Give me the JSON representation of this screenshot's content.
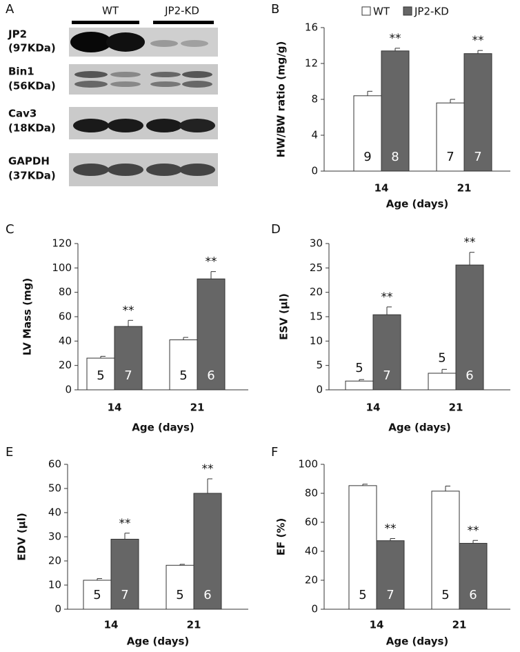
{
  "blot": {
    "label": "A",
    "groups": [
      "WT",
      "JP2-KD"
    ],
    "rows": [
      {
        "protein": "JP2",
        "size": "(97KDa)"
      },
      {
        "protein": "Bin1",
        "size": "(56KDa)"
      },
      {
        "protein": "Cav3",
        "size": "(18KDa)"
      },
      {
        "protein": "GAPDH",
        "size": "(37KDa)"
      }
    ]
  },
  "chart_data": [
    {
      "type": "bar",
      "label": "B",
      "ylabel": "HW/BW ratio  (mg/g)",
      "xlabel": "Age (days)",
      "categories": [
        "14",
        "21"
      ],
      "ylim": [
        0,
        16
      ],
      "yticks": [
        0,
        4,
        8,
        12,
        16
      ],
      "legend": "top",
      "series": [
        {
          "name": "WT",
          "color": "#ffffff",
          "values": [
            8.4,
            7.6
          ],
          "errors": [
            0.5,
            0.4
          ],
          "n_labels": [
            "9",
            "7"
          ]
        },
        {
          "name": "JP2-KD",
          "color": "#666666",
          "values": [
            13.4,
            13.1
          ],
          "errors": [
            0.3,
            0.35
          ],
          "n_labels": [
            "8",
            "7"
          ],
          "markers": [
            "**",
            "**"
          ]
        }
      ]
    },
    {
      "type": "bar",
      "label": "C",
      "ylabel": "LV Mass (mg)",
      "xlabel": "Age (days)",
      "categories": [
        "14",
        "21"
      ],
      "ylim": [
        0,
        120
      ],
      "yticks": [
        0,
        20,
        40,
        60,
        80,
        100,
        120
      ],
      "series": [
        {
          "name": "WT",
          "color": "#ffffff",
          "values": [
            26,
            41
          ],
          "errors": [
            1.5,
            2
          ],
          "n_labels": [
            "5",
            "5"
          ]
        },
        {
          "name": "JP2-KD",
          "color": "#666666",
          "values": [
            52,
            91
          ],
          "errors": [
            5,
            6
          ],
          "n_labels": [
            "7",
            "6"
          ],
          "markers": [
            "**",
            "**"
          ]
        }
      ]
    },
    {
      "type": "bar",
      "label": "D",
      "ylabel": "ESV (µl)",
      "xlabel": "Age (days)",
      "categories": [
        "14",
        "21"
      ],
      "ylim": [
        0,
        30
      ],
      "yticks": [
        0,
        5,
        10,
        15,
        20,
        25,
        30
      ],
      "series": [
        {
          "name": "WT",
          "color": "#ffffff",
          "values": [
            1.8,
            3.4
          ],
          "errors": [
            0.3,
            0.8
          ],
          "n_labels": [
            "5",
            "5"
          ]
        },
        {
          "name": "JP2-KD",
          "color": "#666666",
          "values": [
            15.4,
            25.6
          ],
          "errors": [
            1.6,
            2.6
          ],
          "n_labels": [
            "7",
            "6"
          ],
          "markers": [
            "**",
            "**"
          ]
        }
      ]
    },
    {
      "type": "bar",
      "label": "E",
      "ylabel": "EDV (µl)",
      "xlabel": "Age (days)",
      "categories": [
        "14",
        "21"
      ],
      "ylim": [
        0,
        60
      ],
      "yticks": [
        0,
        10,
        20,
        30,
        40,
        50,
        60
      ],
      "series": [
        {
          "name": "WT",
          "color": "#ffffff",
          "values": [
            12,
            18.2
          ],
          "errors": [
            0.7,
            0.4
          ],
          "n_labels": [
            "5",
            "5"
          ]
        },
        {
          "name": "JP2-KD",
          "color": "#666666",
          "values": [
            29,
            48
          ],
          "errors": [
            2.5,
            6
          ],
          "n_labels": [
            "7",
            "6"
          ],
          "markers": [
            "**",
            "**"
          ]
        }
      ]
    },
    {
      "type": "bar",
      "label": "F",
      "ylabel": "EF (%)",
      "xlabel": "Age (days)",
      "categories": [
        "14",
        "21"
      ],
      "ylim": [
        0,
        100
      ],
      "yticks": [
        0,
        20,
        40,
        60,
        80,
        100
      ],
      "series": [
        {
          "name": "WT",
          "color": "#ffffff",
          "values": [
            85.3,
            81.5
          ],
          "errors": [
            1,
            3.5
          ],
          "n_labels": [
            "5",
            "5"
          ]
        },
        {
          "name": "JP2-KD",
          "color": "#666666",
          "values": [
            47.3,
            45.5
          ],
          "errors": [
            1.5,
            2
          ],
          "n_labels": [
            "7",
            "6"
          ],
          "markers": [
            "**",
            "**"
          ]
        }
      ]
    }
  ]
}
